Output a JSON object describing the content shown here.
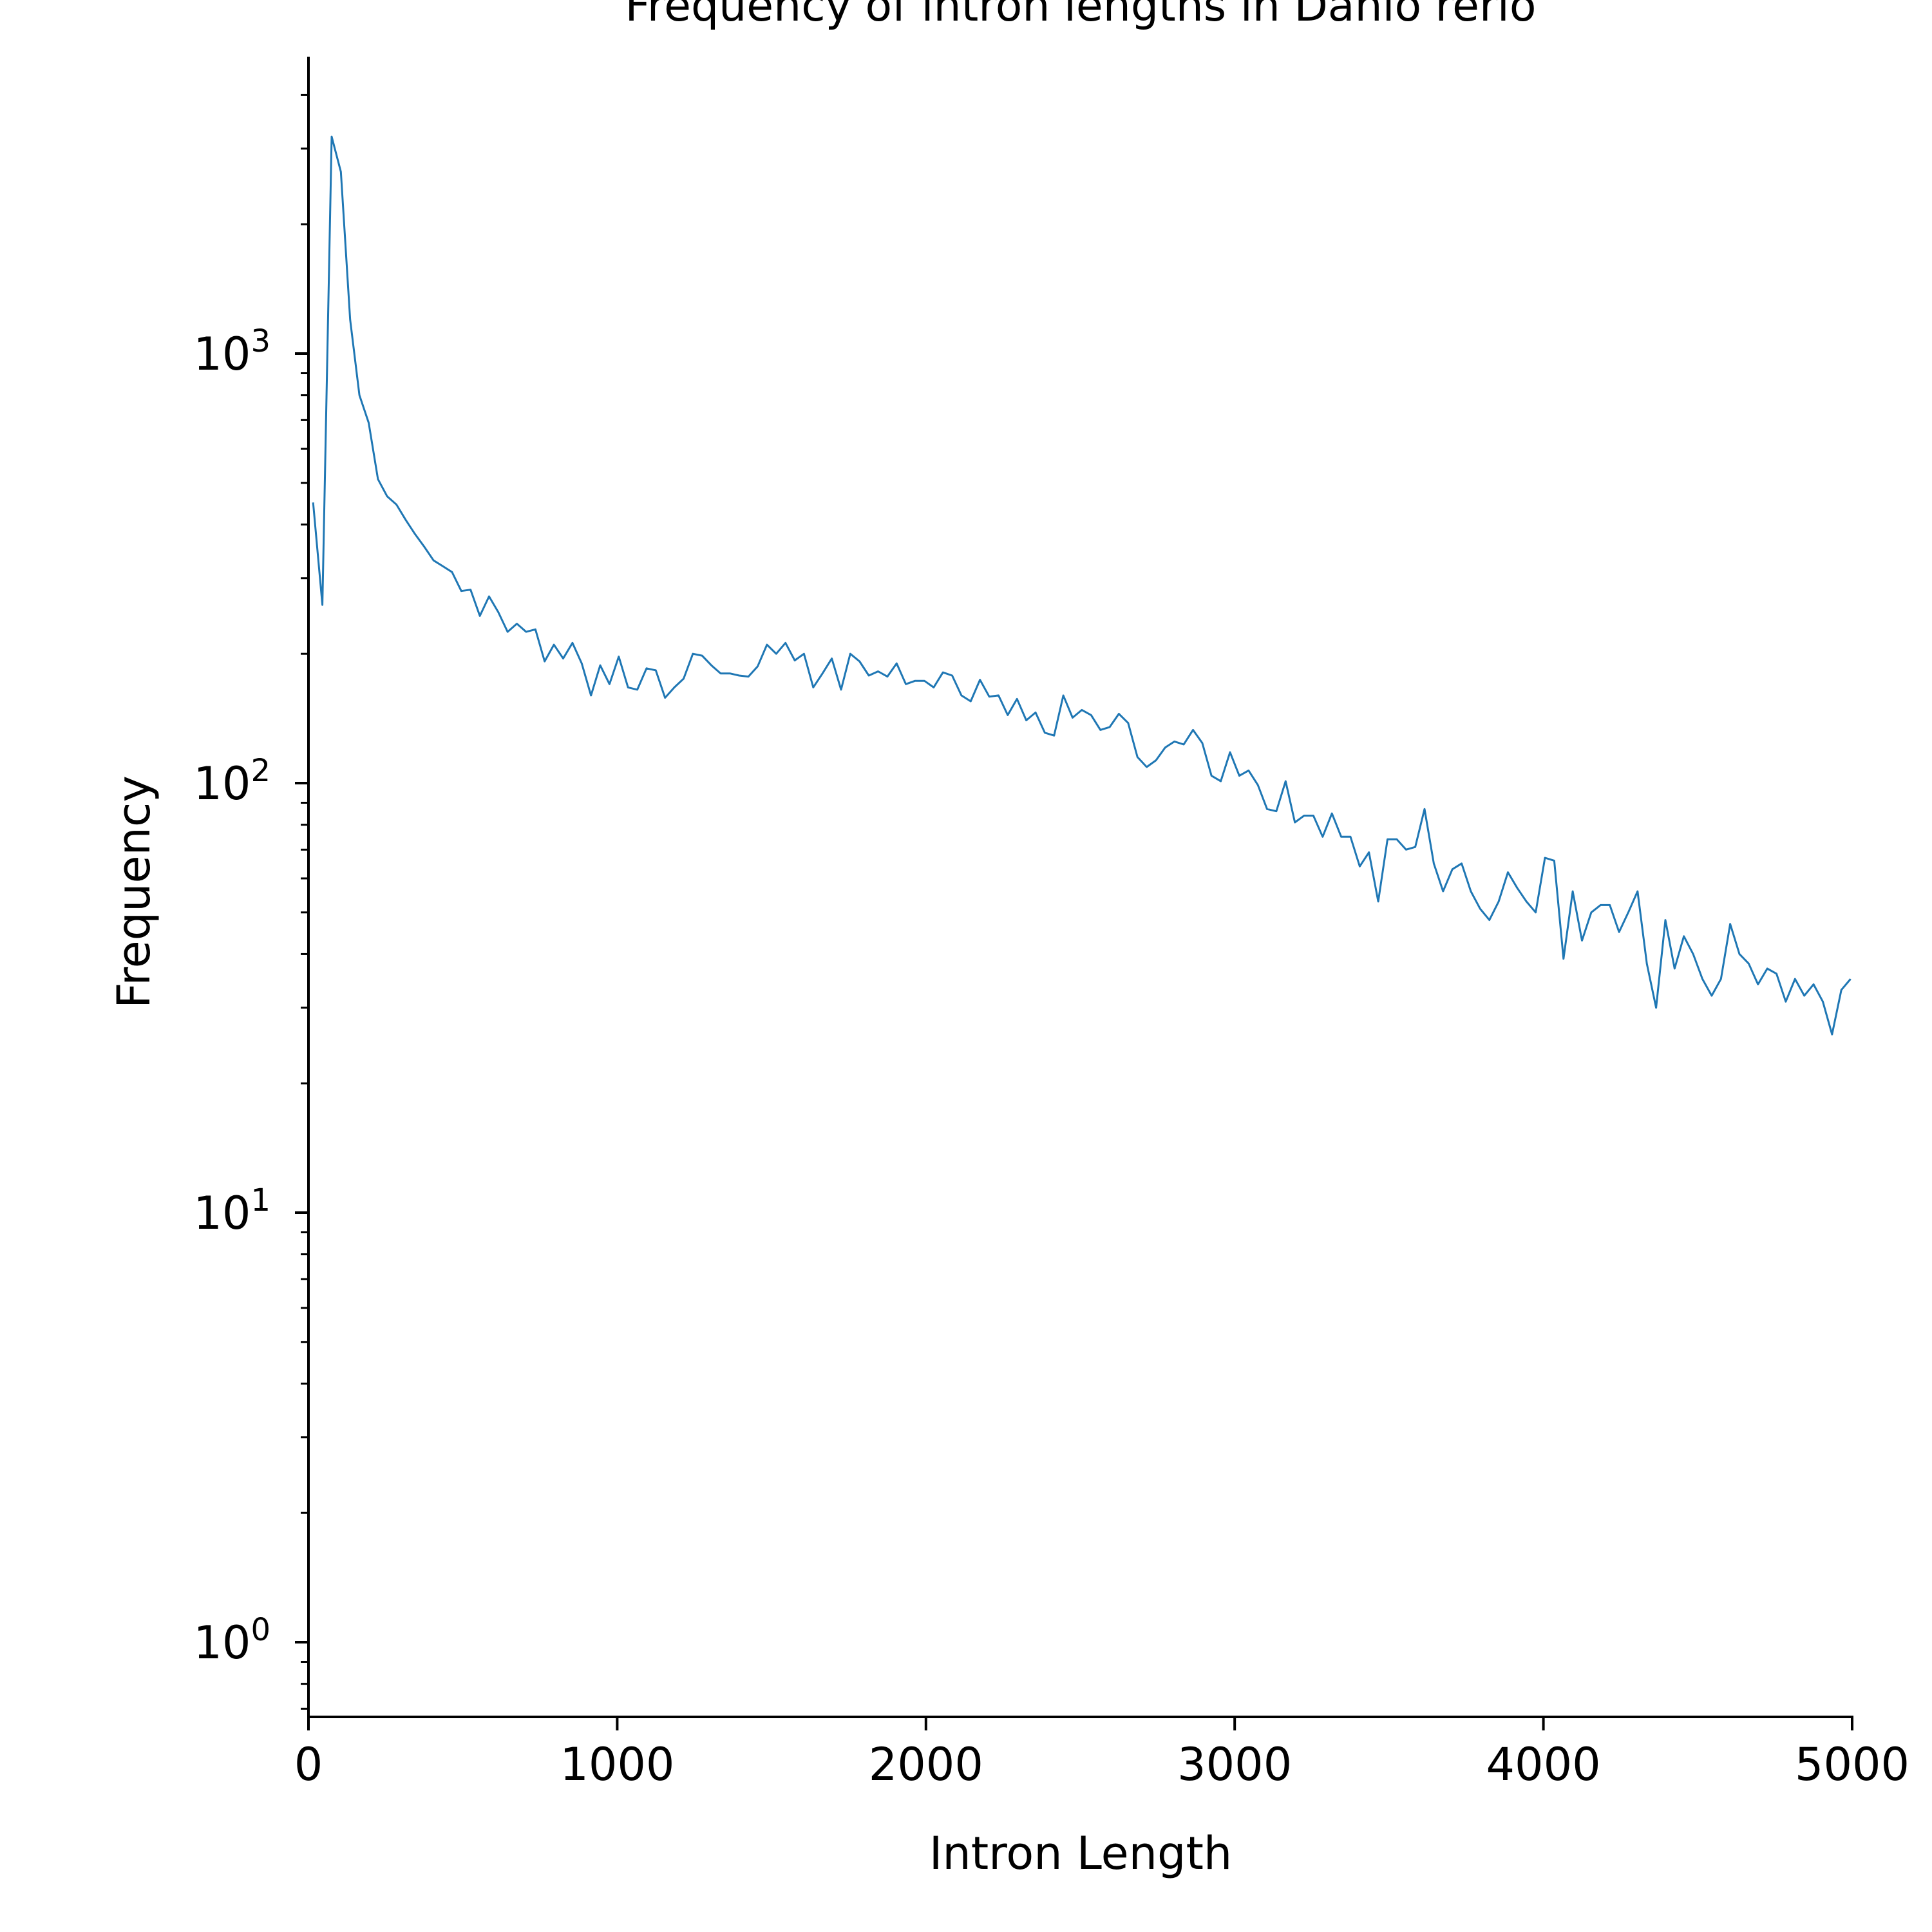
{
  "chart_data": {
    "type": "line",
    "title": "Frequency of intron lengths in Danio rerio",
    "xlabel": "Intron Length",
    "ylabel": "Frequency",
    "xlim": [
      0,
      5000
    ],
    "ylim": [
      0.7,
      4300
    ],
    "yscale": "log",
    "grid": false,
    "legend": "none",
    "colors": {
      "series": "#1f77b4",
      "axis": "#000000"
    },
    "x_ticks": [
      {
        "value": 0,
        "label": "0"
      },
      {
        "value": 1000,
        "label": "1000"
      },
      {
        "value": 2000,
        "label": "2000"
      },
      {
        "value": 3000,
        "label": "3000"
      },
      {
        "value": 4000,
        "label": "4000"
      },
      {
        "value": 5000,
        "label": "5000"
      }
    ],
    "y_ticks": [
      {
        "value": 1,
        "base": "10",
        "exp": "0"
      },
      {
        "value": 10,
        "base": "10",
        "exp": "1"
      },
      {
        "value": 100,
        "base": "10",
        "exp": "2"
      },
      {
        "value": 1000,
        "base": "10",
        "exp": "3"
      }
    ],
    "series": [
      {
        "x": [
          15,
          45,
          75,
          105,
          135,
          165,
          195,
          225,
          255,
          285,
          315,
          345,
          375,
          405,
          435,
          465,
          495,
          525,
          555,
          585,
          615,
          645,
          675,
          705,
          735,
          765,
          795,
          825,
          855,
          885,
          915,
          945,
          975,
          1005,
          1035,
          1065,
          1095,
          1125,
          1155,
          1185,
          1215,
          1245,
          1275,
          1305,
          1335,
          1365,
          1395,
          1425,
          1455,
          1485,
          1515,
          1545,
          1575,
          1605,
          1635,
          1665,
          1695,
          1725,
          1755,
          1785,
          1815,
          1845,
          1875,
          1905,
          1935,
          1965,
          1995,
          2025,
          2055,
          2085,
          2115,
          2145,
          2175,
          2205,
          2235,
          2265,
          2295,
          2325,
          2355,
          2385,
          2415,
          2445,
          2475,
          2505,
          2535,
          2565,
          2595,
          2625,
          2655,
          2685,
          2715,
          2745,
          2775,
          2805,
          2835,
          2865,
          2895,
          2925,
          2955,
          2985,
          3015,
          3045,
          3075,
          3105,
          3135,
          3165,
          3195,
          3225,
          3255,
          3285,
          3315,
          3345,
          3375,
          3405,
          3435,
          3465,
          3495,
          3525,
          3555,
          3585,
          3615,
          3645,
          3675,
          3705,
          3735,
          3765,
          3795,
          3825,
          3855,
          3885,
          3915,
          3945,
          3975,
          4005,
          4035,
          4065,
          4095,
          4125,
          4155,
          4185,
          4215,
          4245,
          4275,
          4305,
          4335,
          4365,
          4395,
          4425,
          4455,
          4485,
          4515,
          4545,
          4575,
          4605,
          4635,
          4665,
          4695,
          4725,
          4755,
          4785,
          4815,
          4845,
          4875,
          4905,
          4935,
          4965,
          4995
        ],
        "y": [
          450,
          260,
          3200,
          2650,
          1200,
          800,
          690,
          510,
          465,
          445,
          410,
          380,
          355,
          330,
          320,
          310,
          280,
          282,
          245,
          272,
          250,
          225,
          235,
          225,
          228,
          192,
          210,
          195,
          212,
          190,
          160,
          188,
          170,
          197,
          167,
          165,
          185,
          183,
          158,
          167,
          175,
          200,
          198,
          188,
          180,
          180,
          178,
          177,
          187,
          210,
          200,
          212,
          193,
          200,
          167,
          180,
          195,
          165,
          200,
          192,
          178,
          182,
          177,
          190,
          170,
          173,
          173,
          167,
          181,
          178,
          160,
          155,
          174,
          159,
          160,
          144,
          157,
          140,
          146,
          131,
          129,
          160,
          142,
          148,
          144,
          133,
          135,
          145,
          138,
          115,
          109,
          113,
          121,
          125,
          123,
          133,
          124,
          104,
          101,
          118,
          104,
          107,
          99,
          87,
          86,
          101,
          81,
          84,
          84,
          75,
          85,
          75,
          75,
          64,
          69,
          53,
          74,
          74,
          70,
          71,
          87,
          65,
          56,
          63,
          65,
          56,
          51,
          48,
          53,
          62,
          57,
          53,
          50,
          67,
          66,
          39,
          56,
          43,
          50,
          52,
          52,
          45,
          50,
          56,
          38,
          30,
          48,
          37,
          44,
          40,
          35,
          32,
          35,
          47,
          40,
          38,
          34,
          37,
          36,
          31,
          35,
          32,
          34,
          31,
          26,
          33,
          35
        ]
      }
    ]
  }
}
